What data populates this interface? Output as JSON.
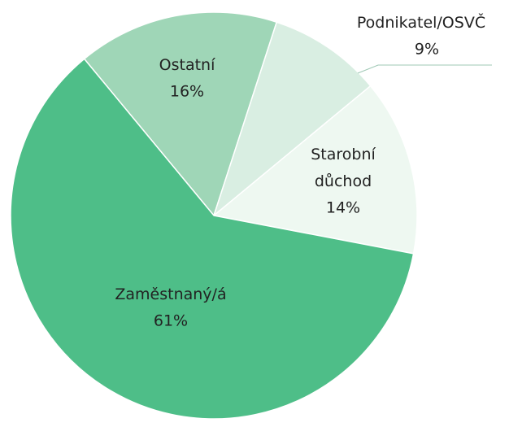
{
  "chart_data": {
    "type": "pie",
    "categories": [
      "Ostatní",
      "Podnikatel/OSVČ",
      "Starobní důchod",
      "Zaměstnaný/á"
    ],
    "values": [
      16,
      9,
      14,
      61
    ],
    "value_labels": [
      "16%",
      "9%",
      "14%",
      "61%"
    ],
    "colors": [
      "#9fd6b7",
      "#d9eee2",
      "#eef8f1",
      "#4ebe88"
    ]
  }
}
